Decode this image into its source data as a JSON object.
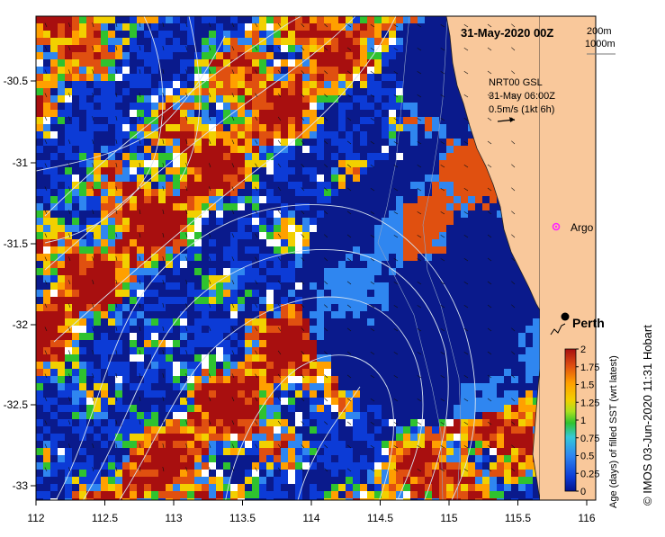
{
  "map": {
    "title": "31-May-2020 00Z",
    "depth_contours": [
      "200m",
      "1000m"
    ],
    "current_info": [
      "NRT00 GSL",
      "31-May 06:00Z",
      "0.5m/s (1kt 6h)"
    ],
    "argo_label": "Argo",
    "city_label": "Perth",
    "x_ticks": [
      "112",
      "112.5",
      "113",
      "113.5",
      "114",
      "114.5",
      "115",
      "115.5",
      "116"
    ],
    "y_ticks": [
      "-30.5",
      "-31",
      "-31.5",
      "-32",
      "-32.5",
      "-33"
    ],
    "colorbar_ticks": [
      "2",
      "1.75",
      "1.5",
      "1.25",
      "1",
      "0.75",
      "0.5",
      "0.25",
      "0"
    ],
    "colorbar_label": "Age (days) of filled SST (wrt latest)",
    "credit": "© IMOS 03-Jun-2020 11:31 Hobart"
  },
  "colors": {
    "land": "#f9c89b",
    "ocean_base": "#0a1a8c",
    "palette": [
      "#04138c",
      "#0c3bd6",
      "#2f86f0",
      "#34c8d8",
      "#2fc22f",
      "#a8e020",
      "#f2d000",
      "#ffa000",
      "#e05010",
      "#a80f0f",
      "#ffffff"
    ]
  }
}
